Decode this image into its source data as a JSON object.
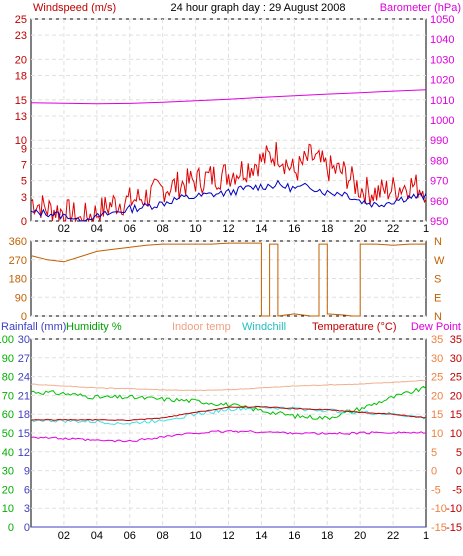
{
  "header": {
    "title": "24 hour graph day : 29 August 2008",
    "left_label": "Windspeed (m/s)",
    "right_label": "Barometer (hPa)"
  },
  "temp_header": {
    "rainfall": "Rainfall (mm)",
    "humidity": "Humidity %",
    "indoor": "Indoor temp",
    "windchill": "Windchill",
    "temperature": "Temperature (°C)",
    "dewpoint": "Dew Point"
  },
  "colors": {
    "wind_gust": "#e00000",
    "wind_avg": "#0000c0",
    "barometer": "#e000e0",
    "direction": "#c06000",
    "humidity": "#00c000",
    "indoor": "#f0b090",
    "windchill": "#40e0e0",
    "temperature": "#c00000",
    "dewpoint": "#e000e0",
    "rainfall": "#4040c0"
  },
  "chart_data": [
    {
      "type": "line",
      "name": "wind",
      "x_ticks": [
        "02",
        "04",
        "06",
        "08",
        "10",
        "12",
        "14",
        "16",
        "18",
        "20",
        "22"
      ],
      "y_ticks_left": [
        "0",
        "3",
        "5",
        "7",
        "9",
        "10",
        "13",
        "15",
        "18",
        "20",
        "23",
        "25"
      ],
      "y_ticks_right": [
        "950",
        "960",
        "970",
        "980",
        "990",
        "1000",
        "1010",
        "1020",
        "1030",
        "1040",
        "1050"
      ],
      "ylim_left": [
        0,
        25
      ],
      "ylim_right": [
        950,
        1050
      ],
      "series": [
        {
          "name": "Windspeed (m/s)",
          "role": "gust",
          "x": [
            0,
            1,
            2,
            3,
            4,
            5,
            6,
            7,
            8,
            9,
            10,
            11,
            12,
            13,
            14,
            15,
            16,
            17,
            18,
            19,
            20,
            21,
            22,
            23,
            24
          ],
          "y": [
            2.5,
            1.5,
            1.2,
            0.3,
            1.0,
            2.2,
            2.5,
            3.0,
            4.0,
            4.5,
            5.0,
            5.5,
            5.8,
            6.5,
            7.5,
            8.5,
            6.0,
            8.0,
            6.5,
            6.0,
            4.0,
            3.5,
            4.0,
            4.5,
            4.0
          ]
        },
        {
          "name": "",
          "role": "average",
          "x": [
            0,
            1,
            2,
            3,
            4,
            5,
            6,
            7,
            8,
            9,
            10,
            11,
            12,
            13,
            14,
            15,
            16,
            17,
            18,
            19,
            20,
            21,
            22,
            23,
            24
          ],
          "y": [
            1.0,
            1.0,
            0.6,
            0.1,
            0.5,
            1.0,
            1.5,
            1.8,
            2.2,
            2.8,
            3.0,
            3.3,
            3.5,
            4.0,
            4.3,
            4.5,
            4.0,
            4.3,
            3.5,
            3.5,
            2.5,
            2.0,
            2.5,
            3.0,
            3.0
          ]
        },
        {
          "name": "Barometer (hPa)",
          "role": "pressure",
          "x": [
            0,
            2,
            4,
            6,
            8,
            10,
            12,
            14,
            16,
            18,
            20,
            22,
            24
          ],
          "y": [
            1008.5,
            1008.3,
            1008.0,
            1008.2,
            1008.8,
            1009.5,
            1010.3,
            1011.2,
            1012.0,
            1012.8,
            1013.5,
            1014.3,
            1015.0
          ]
        }
      ]
    },
    {
      "type": "line",
      "name": "wind_direction",
      "x_ticks": [],
      "y_ticks_left": [
        "360",
        "270",
        "180",
        "90",
        "0"
      ],
      "y_ticks_right": [
        "N",
        "W",
        "S",
        "E",
        "N"
      ],
      "ylim": [
        0,
        360
      ],
      "series": [
        {
          "name": "",
          "x": [
            0,
            1,
            2,
            3,
            4,
            5,
            6,
            7,
            8,
            9,
            10,
            11,
            12,
            13,
            14,
            14.5,
            15,
            16,
            17,
            17.5,
            18,
            19,
            19.5,
            20,
            21,
            22,
            23,
            24
          ],
          "y": [
            290,
            270,
            260,
            285,
            310,
            320,
            330,
            340,
            345,
            345,
            345,
            345,
            350,
            350,
            0,
            345,
            0,
            10,
            0,
            345,
            10,
            5,
            0,
            345,
            345,
            340,
            345,
            345
          ]
        }
      ]
    },
    {
      "type": "line",
      "name": "temperature",
      "x_ticks": [
        "02",
        "04",
        "06",
        "08",
        "10",
        "12",
        "14",
        "16",
        "18",
        "20",
        "22"
      ],
      "y_ticks_left_rain": [
        "0",
        "3",
        "6",
        "9",
        "12",
        "15",
        "18",
        "21",
        "24",
        "27",
        "30"
      ],
      "y_ticks_left_hum": [
        "0",
        "10",
        "20",
        "30",
        "40",
        "50",
        "60",
        "70",
        "80",
        "90",
        "100"
      ],
      "y_ticks_right": [
        "35",
        "30",
        "25",
        "20",
        "15",
        "10",
        "5",
        "0",
        "-5",
        "-10",
        "-15"
      ],
      "ylim_temp": [
        -15,
        35
      ],
      "ylim_hum": [
        0,
        100
      ],
      "ylim_rain": [
        0,
        30
      ],
      "series": [
        {
          "name": "Humidity %",
          "role": "humidity",
          "axis": "hum",
          "x": [
            0,
            2,
            4,
            6,
            8,
            10,
            12,
            14,
            16,
            18,
            20,
            22,
            24
          ],
          "y": [
            72,
            71,
            69,
            69,
            68,
            67,
            65,
            62,
            59,
            58,
            63,
            69,
            74
          ]
        },
        {
          "name": "Indoor temp",
          "role": "indoor",
          "axis": "temp",
          "x": [
            0,
            2,
            4,
            6,
            8,
            10,
            12,
            14,
            16,
            18,
            20,
            22,
            24
          ],
          "y": [
            23,
            22.5,
            22,
            21.8,
            21.5,
            21.3,
            21.5,
            22,
            22.5,
            22.8,
            23,
            23.5,
            24
          ]
        },
        {
          "name": "Windchill",
          "role": "windchill",
          "axis": "temp",
          "x": [
            0,
            2,
            4,
            6,
            8,
            10,
            12,
            14,
            16,
            18,
            20,
            22,
            24
          ],
          "y": [
            13.5,
            13.2,
            13,
            12.5,
            13.5,
            15,
            16.3,
            16.8,
            16.5,
            16,
            15.5,
            15,
            14
          ]
        },
        {
          "name": "Temperature (°C)",
          "role": "temperature",
          "axis": "temp",
          "x": [
            0,
            2,
            4,
            6,
            8,
            10,
            12,
            14,
            16,
            18,
            20,
            22,
            24
          ],
          "y": [
            13.5,
            13.5,
            13.5,
            13.4,
            14,
            15.5,
            16.8,
            17,
            16.5,
            16.2,
            15.5,
            15,
            14
          ]
        },
        {
          "name": "Dew Point",
          "role": "dewpoint",
          "axis": "temp",
          "x": [
            0,
            2,
            4,
            6,
            8,
            10,
            12,
            14,
            16,
            18,
            20,
            22,
            24
          ],
          "y": [
            9,
            8.5,
            8,
            7.8,
            9,
            10,
            10.5,
            10.3,
            10,
            9.8,
            10,
            10.2,
            10
          ]
        },
        {
          "name": "Rainfall (mm)",
          "role": "rainfall",
          "axis": "rain",
          "x": [
            0,
            24
          ],
          "y": [
            0,
            0
          ]
        }
      ]
    }
  ]
}
